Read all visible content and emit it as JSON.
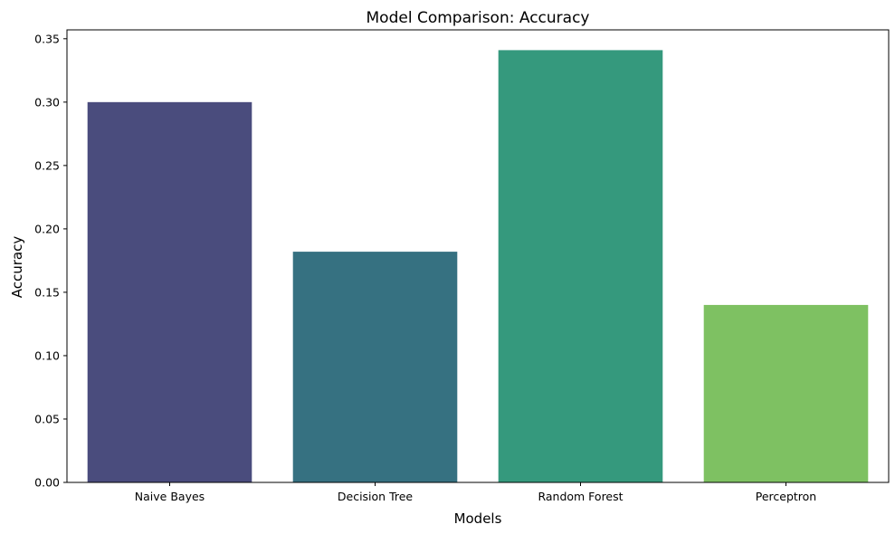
{
  "chart_data": {
    "type": "bar",
    "title": "Model Comparison: Accuracy",
    "xlabel": "Models",
    "ylabel": "Accuracy",
    "categories": [
      "Naive Bayes",
      "Decision Tree",
      "Random Forest",
      "Perceptron"
    ],
    "values": [
      0.3,
      0.182,
      0.341,
      0.14
    ],
    "colors": [
      "#4a4c7d",
      "#367181",
      "#35997d",
      "#7ec162"
    ],
    "ylim": [
      0,
      0.357
    ],
    "yticks": [
      "0.00",
      "0.05",
      "0.10",
      "0.15",
      "0.20",
      "0.25",
      "0.30",
      "0.35"
    ],
    "grid": false,
    "legend": "none"
  }
}
